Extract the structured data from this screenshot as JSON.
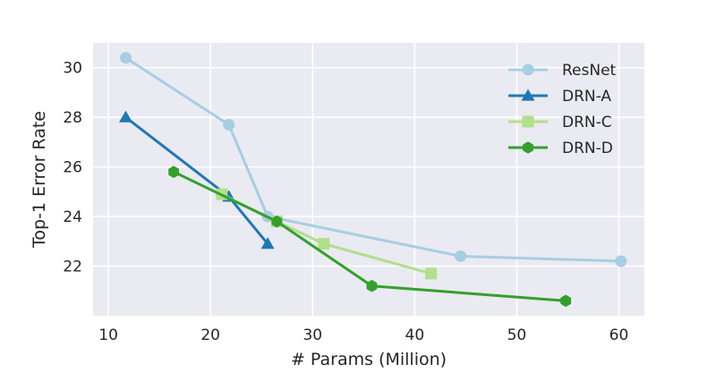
{
  "chart_data": {
    "type": "line",
    "title": "",
    "xlabel": "# Params (Million)",
    "ylabel": "Top-1 Error Rate",
    "xlim": [
      8.5,
      62.5
    ],
    "ylim": [
      20,
      31
    ],
    "xticks": [
      10,
      20,
      30,
      40,
      50,
      60
    ],
    "yticks": [
      22,
      24,
      26,
      28,
      30
    ],
    "grid": true,
    "legend_position": "top-right",
    "series": [
      {
        "name": "ResNet",
        "color": "#a6cee3",
        "marker": "circle",
        "x": [
          11.7,
          21.8,
          25.6,
          44.5,
          60.2
        ],
        "y": [
          30.4,
          27.7,
          24.0,
          22.4,
          22.2
        ]
      },
      {
        "name": "DRN-A",
        "color": "#1f78b4",
        "marker": "triangle",
        "x": [
          11.7,
          21.8,
          25.6
        ],
        "y": [
          28.0,
          24.8,
          22.9
        ]
      },
      {
        "name": "DRN-C",
        "color": "#b2df8a",
        "marker": "square",
        "x": [
          21.1,
          26.5,
          31.1,
          41.6
        ],
        "y": [
          24.9,
          23.8,
          22.9,
          21.7
        ]
      },
      {
        "name": "DRN-D",
        "color": "#33a02c",
        "marker": "hexagon",
        "x": [
          16.4,
          26.5,
          35.8,
          54.8
        ],
        "y": [
          25.8,
          23.8,
          21.2,
          20.6
        ]
      }
    ]
  }
}
